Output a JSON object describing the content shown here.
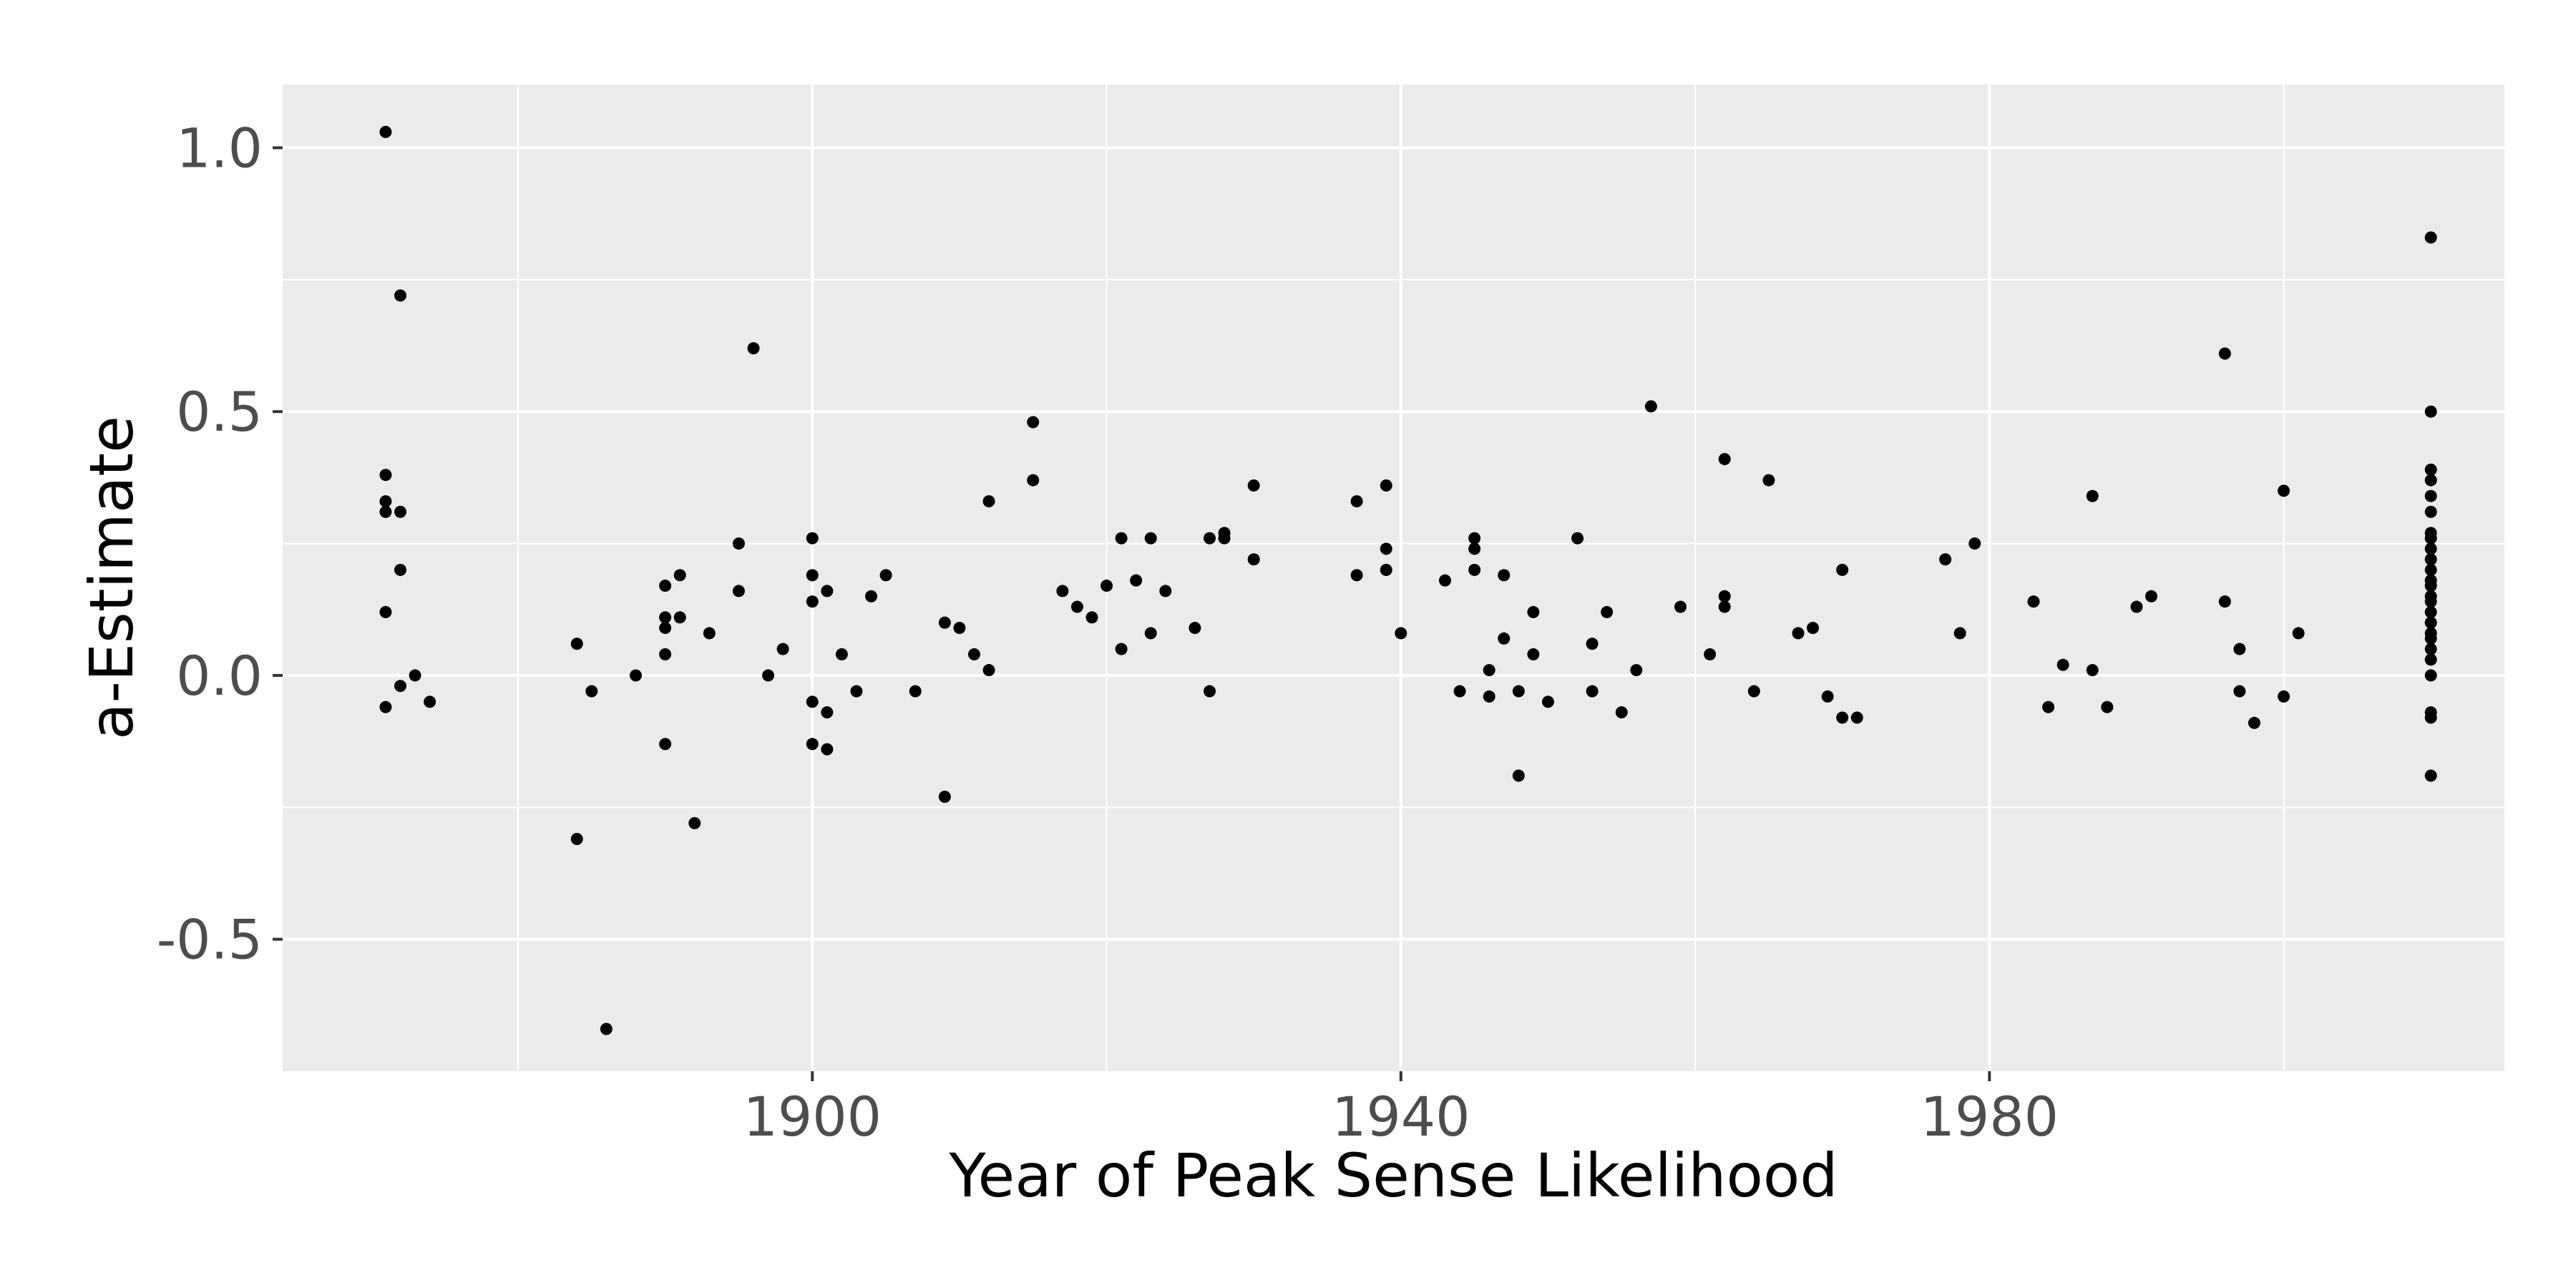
{
  "chart_data": {
    "type": "scatter",
    "title": "",
    "xlabel": "Year of Peak Sense Likelihood",
    "ylabel": "a-Estimate",
    "xlim": [
      1864,
      2015
    ],
    "ylim": [
      -0.75,
      1.12
    ],
    "x_ticks": [
      1900,
      1940,
      1980
    ],
    "x_tick_labels": [
      "1900",
      "1940",
      "1980"
    ],
    "y_ticks": [
      -0.5,
      0.0,
      0.5,
      1.0
    ],
    "y_tick_labels": [
      "-0.5",
      "0.0",
      "0.5",
      "1.0"
    ],
    "grid": true,
    "panel_background": "#ebebeb",
    "grid_color": "#ffffff",
    "point_color": "#000000",
    "points": [
      [
        1871,
        1.03
      ],
      [
        1872,
        0.72
      ],
      [
        1871,
        0.38
      ],
      [
        1871,
        0.33
      ],
      [
        1871,
        0.31
      ],
      [
        1872,
        0.31
      ],
      [
        1872,
        0.2
      ],
      [
        1871,
        0.12
      ],
      [
        1873,
        0.0
      ],
      [
        1872,
        -0.02
      ],
      [
        1874,
        -0.05
      ],
      [
        1871,
        -0.06
      ],
      [
        1884,
        0.06
      ],
      [
        1885,
        -0.03
      ],
      [
        1884,
        -0.31
      ],
      [
        1886,
        -0.67
      ],
      [
        1888,
        0.0
      ],
      [
        1890,
        0.17
      ],
      [
        1890,
        0.11
      ],
      [
        1890,
        0.09
      ],
      [
        1891,
        0.19
      ],
      [
        1891,
        0.11
      ],
      [
        1890,
        0.04
      ],
      [
        1890,
        -0.13
      ],
      [
        1892,
        -0.28
      ],
      [
        1893,
        0.08
      ],
      [
        1895,
        0.25
      ],
      [
        1895,
        0.16
      ],
      [
        1896,
        0.62
      ],
      [
        1897,
        0.0
      ],
      [
        1898,
        0.05
      ],
      [
        1900,
        0.26
      ],
      [
        1900,
        0.19
      ],
      [
        1900,
        0.14
      ],
      [
        1901,
        0.16
      ],
      [
        1900,
        -0.05
      ],
      [
        1901,
        -0.07
      ],
      [
        1900,
        -0.13
      ],
      [
        1901,
        -0.14
      ],
      [
        1902,
        0.04
      ],
      [
        1903,
        -0.03
      ],
      [
        1904,
        0.15
      ],
      [
        1905,
        0.19
      ],
      [
        1907,
        -0.03
      ],
      [
        1909,
        0.1
      ],
      [
        1910,
        0.09
      ],
      [
        1911,
        0.04
      ],
      [
        1912,
        0.01
      ],
      [
        1909,
        -0.23
      ],
      [
        1912,
        0.33
      ],
      [
        1915,
        0.48
      ],
      [
        1915,
        0.37
      ],
      [
        1917,
        0.16
      ],
      [
        1918,
        0.13
      ],
      [
        1919,
        0.11
      ],
      [
        1920,
        0.17
      ],
      [
        1921,
        0.26
      ],
      [
        1921,
        0.05
      ],
      [
        1922,
        0.18
      ],
      [
        1923,
        0.26
      ],
      [
        1924,
        0.16
      ],
      [
        1923,
        0.08
      ],
      [
        1926,
        0.09
      ],
      [
        1927,
        0.26
      ],
      [
        1928,
        0.27
      ],
      [
        1928,
        0.26
      ],
      [
        1927,
        -0.03
      ],
      [
        1930,
        0.36
      ],
      [
        1930,
        0.22
      ],
      [
        1937,
        0.33
      ],
      [
        1939,
        0.36
      ],
      [
        1939,
        0.24
      ],
      [
        1937,
        0.19
      ],
      [
        1939,
        0.2
      ],
      [
        1940,
        0.08
      ],
      [
        1943,
        0.18
      ],
      [
        1945,
        0.26
      ],
      [
        1945,
        0.24
      ],
      [
        1945,
        0.2
      ],
      [
        1947,
        0.19
      ],
      [
        1947,
        0.07
      ],
      [
        1944,
        -0.03
      ],
      [
        1946,
        0.01
      ],
      [
        1946,
        -0.04
      ],
      [
        1948,
        -0.03
      ],
      [
        1949,
        0.12
      ],
      [
        1949,
        0.04
      ],
      [
        1950,
        -0.05
      ],
      [
        1948,
        -0.19
      ],
      [
        1952,
        0.26
      ],
      [
        1953,
        0.06
      ],
      [
        1953,
        -0.03
      ],
      [
        1954,
        0.12
      ],
      [
        1956,
        0.01
      ],
      [
        1955,
        -0.07
      ],
      [
        1957,
        0.51
      ],
      [
        1959,
        0.13
      ],
      [
        1961,
        0.04
      ],
      [
        1962,
        0.41
      ],
      [
        1962,
        0.15
      ],
      [
        1962,
        0.13
      ],
      [
        1964,
        -0.03
      ],
      [
        1965,
        0.37
      ],
      [
        1967,
        0.08
      ],
      [
        1968,
        0.09
      ],
      [
        1969,
        -0.04
      ],
      [
        1970,
        0.2
      ],
      [
        1970,
        -0.08
      ],
      [
        1971,
        -0.08
      ],
      [
        1977,
        0.22
      ],
      [
        1978,
        0.08
      ],
      [
        1979,
        0.25
      ],
      [
        1983,
        0.14
      ],
      [
        1984,
        -0.06
      ],
      [
        1985,
        0.02
      ],
      [
        1987,
        0.34
      ],
      [
        1987,
        0.01
      ],
      [
        1988,
        -0.06
      ],
      [
        1990,
        0.13
      ],
      [
        1991,
        0.15
      ],
      [
        1996,
        0.61
      ],
      [
        1996,
        0.14
      ],
      [
        1997,
        0.05
      ],
      [
        1997,
        -0.03
      ],
      [
        1998,
        -0.09
      ],
      [
        2000,
        0.35
      ],
      [
        2000,
        -0.04
      ],
      [
        2001,
        0.08
      ],
      [
        2010,
        0.83
      ],
      [
        2010,
        0.5
      ],
      [
        2010,
        0.39
      ],
      [
        2010,
        0.37
      ],
      [
        2010,
        0.34
      ],
      [
        2010,
        0.31
      ],
      [
        2010,
        0.27
      ],
      [
        2010,
        0.26
      ],
      [
        2010,
        0.24
      ],
      [
        2010,
        0.22
      ],
      [
        2010,
        0.2
      ],
      [
        2010,
        0.18
      ],
      [
        2010,
        0.17
      ],
      [
        2010,
        0.15
      ],
      [
        2010,
        0.14
      ],
      [
        2010,
        0.12
      ],
      [
        2010,
        0.1
      ],
      [
        2010,
        0.08
      ],
      [
        2010,
        0.07
      ],
      [
        2010,
        0.05
      ],
      [
        2010,
        0.03
      ],
      [
        2010,
        0.0
      ],
      [
        2010,
        -0.07
      ],
      [
        2010,
        -0.08
      ],
      [
        2010,
        -0.19
      ]
    ]
  }
}
